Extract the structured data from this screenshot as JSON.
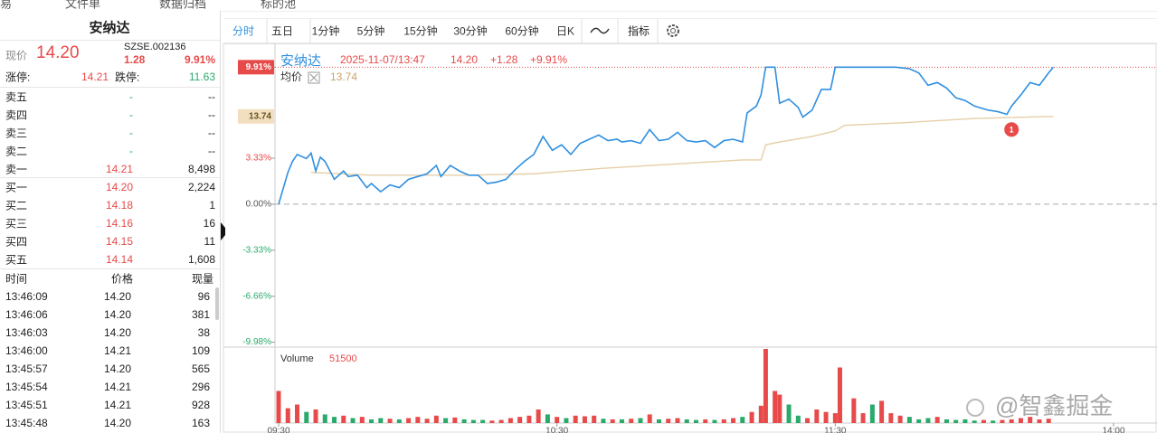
{
  "top_bar": {
    "items": [
      "易",
      "文件单",
      "数据归档",
      "标的池"
    ]
  },
  "quote": {
    "name": "安纳达",
    "price_label": "现价",
    "price": "14.20",
    "code": "SZSE.002136",
    "change": "1.28",
    "change_pct": "9.91%",
    "limit_up_label": "涨停:",
    "limit_up": "14.21",
    "limit_down_label": "跌停:",
    "limit_down": "11.63"
  },
  "order_book": {
    "rows": [
      [
        "卖五",
        "-",
        "--"
      ],
      [
        "卖四",
        "-",
        "--"
      ],
      [
        "卖三",
        "-",
        "--"
      ],
      [
        "卖二",
        "-",
        "--"
      ],
      [
        "卖一",
        "14.21",
        "8,498"
      ],
      [
        "买一",
        "14.20",
        "2,224"
      ],
      [
        "买二",
        "14.18",
        "1"
      ],
      [
        "买三",
        "14.16",
        "16"
      ],
      [
        "买四",
        "14.15",
        "11"
      ],
      [
        "买五",
        "14.14",
        "1,608"
      ]
    ]
  },
  "trades": {
    "header": [
      "时间",
      "价格",
      "现量"
    ],
    "rows": [
      [
        "13:46:09",
        "14.20",
        "96"
      ],
      [
        "13:46:06",
        "14.20",
        "381"
      ],
      [
        "13:46:03",
        "14.20",
        "38"
      ],
      [
        "13:46:00",
        "14.21",
        "109"
      ],
      [
        "13:45:57",
        "14.20",
        "565"
      ],
      [
        "13:45:54",
        "14.21",
        "296"
      ],
      [
        "13:45:51",
        "14.21",
        "928"
      ],
      [
        "13:45:48",
        "14.20",
        "163"
      ]
    ]
  },
  "toolbar": {
    "tabs": [
      "分时",
      "五日",
      "1分钟",
      "5分钟",
      "15分钟",
      "30分钟",
      "60分钟",
      "日K"
    ],
    "indicator": "指标"
  },
  "chart_data": {
    "type": "line",
    "legend": {
      "date": "2025-11-07/13:47",
      "change": "+1.28",
      "change_pct": "+9.91%"
    },
    "avg_price": "13.74",
    "x": [
      0,
      2,
      3,
      4,
      6,
      7,
      8,
      9,
      10,
      12,
      14,
      15,
      17,
      19,
      20,
      22,
      24,
      26,
      28,
      30,
      32,
      34,
      35,
      37,
      39,
      41,
      43,
      45,
      47,
      49,
      51,
      53,
      55,
      57,
      59,
      61,
      63,
      65,
      67,
      69,
      71,
      73,
      74,
      76,
      78,
      80,
      82,
      84,
      86,
      88,
      90,
      92,
      94,
      96,
      98,
      100,
      101,
      103,
      104,
      105,
      107,
      108,
      110,
      112,
      113,
      115,
      117,
      119,
      120,
      122,
      125,
      129,
      133,
      136,
      138,
      140,
      142,
      144,
      146,
      148,
      150,
      151,
      153,
      155,
      157,
      158,
      160,
      162,
      164,
      166,
      167
    ],
    "series": [
      {
        "name": "安纳达",
        "color": "#2f8fe0",
        "values": [
          0,
          2.3,
          3.1,
          3.6,
          3.3,
          3.7,
          2.4,
          3.4,
          3.1,
          1.8,
          2.4,
          2.0,
          2.1,
          1.2,
          1.5,
          0.9,
          1.4,
          1.2,
          1.8,
          2.0,
          2.2,
          2.8,
          2.0,
          2.8,
          2.4,
          2.1,
          2.1,
          1.5,
          1.6,
          1.8,
          2.5,
          3.1,
          3.6,
          4.9,
          3.9,
          4.3,
          3.6,
          4.4,
          4.7,
          5.0,
          4.6,
          4.7,
          4.5,
          4.6,
          4.4,
          5.4,
          4.6,
          4.7,
          5.2,
          4.6,
          4.5,
          4.6,
          4.1,
          4.6,
          4.7,
          4.5,
          6.6,
          7.1,
          7.9,
          9.91,
          9.91,
          7.3,
          7.6,
          7.0,
          6.3,
          6.8,
          8.3,
          8.3,
          9.91,
          9.91,
          9.91,
          9.91,
          9.91,
          9.8,
          9.5,
          8.6,
          8.8,
          8.4,
          7.7,
          7.5,
          7.1,
          7.0,
          6.8,
          6.7,
          6.5,
          7.1,
          7.9,
          8.8,
          8.6,
          9.5,
          9.91
        ]
      },
      {
        "name": "均价",
        "color": "#e6cfa6",
        "x": [
          7,
          20,
          40,
          55,
          70,
          85,
          100,
          104,
          105,
          108,
          115,
          120,
          122,
          135,
          150,
          167
        ],
        "values": [
          2.3,
          2.1,
          2.1,
          2.2,
          2.6,
          2.9,
          3.2,
          3.2,
          4.3,
          4.5,
          4.9,
          5.3,
          5.7,
          5.9,
          6.2,
          6.35
        ]
      }
    ],
    "xlim": [
      0,
      180
    ],
    "xticks": [
      {
        "value": 0,
        "label": "09:30"
      },
      {
        "value": 60,
        "label": "10:30"
      },
      {
        "value": 120,
        "label": "11:30"
      },
      {
        "value": 180,
        "label": "14:00"
      }
    ],
    "ylim": [
      -10.4,
      11.5
    ],
    "yticks": [
      {
        "value": 9.91,
        "label": "9.91%"
      },
      {
        "value": 3.33,
        "label": "3.33%"
      },
      {
        "value": 0,
        "label": "0.00%"
      },
      {
        "value": -3.33,
        "label": "-3.33%"
      },
      {
        "value": -6.66,
        "label": "-6.66%"
      },
      {
        "value": -9.98,
        "label": "-9.98%"
      }
    ],
    "annotations": [
      {
        "x": 158,
        "y": 5.4,
        "text": "1"
      }
    ],
    "volume": {
      "name": "Volume",
      "current": 51500,
      "ylim": [
        0,
        60000
      ],
      "up_color": "#e84a4a",
      "down_color": "#2aaa6a",
      "x": [
        0,
        2,
        4,
        6,
        8,
        10,
        12,
        14,
        16,
        18,
        20,
        22,
        24,
        26,
        28,
        30,
        32,
        34,
        36,
        38,
        40,
        42,
        44,
        46,
        48,
        50,
        52,
        54,
        56,
        58,
        60,
        62,
        64,
        66,
        68,
        70,
        72,
        74,
        76,
        78,
        80,
        82,
        84,
        86,
        88,
        90,
        92,
        94,
        96,
        98,
        100,
        102,
        104,
        105,
        107,
        108,
        110,
        112,
        114,
        116,
        118,
        120,
        121,
        124,
        126,
        128,
        130,
        132,
        134,
        136,
        138,
        140,
        142,
        144,
        146,
        148,
        150,
        152,
        154,
        156,
        158,
        160,
        162,
        164,
        166
      ],
      "values": [
        26000,
        12000,
        15000,
        9000,
        11000,
        7000,
        5000,
        6000,
        4000,
        5000,
        3000,
        4000,
        3500,
        3000,
        4000,
        5000,
        3500,
        6000,
        4000,
        4500,
        3000,
        2500,
        2500,
        2000,
        2500,
        4000,
        5000,
        6000,
        11000,
        7000,
        5000,
        4000,
        6000,
        5500,
        6000,
        3500,
        3000,
        3000,
        3500,
        4000,
        7000,
        3000,
        3500,
        4000,
        3000,
        2500,
        3000,
        2500,
        3000,
        4000,
        5000,
        9000,
        14000,
        60000,
        26000,
        23000,
        15000,
        6000,
        4000,
        11000,
        9000,
        8000,
        45000,
        20000,
        8000,
        15000,
        18000,
        8000,
        6000,
        5000,
        3000,
        4000,
        5000,
        3000,
        2500,
        3000,
        2000,
        2500,
        2000,
        2500,
        3000,
        4000,
        5000,
        3000,
        3500
      ],
      "up": [
        true,
        true,
        true,
        false,
        true,
        false,
        false,
        true,
        false,
        true,
        false,
        false,
        true,
        false,
        true,
        true,
        true,
        true,
        false,
        true,
        false,
        false,
        false,
        true,
        true,
        true,
        true,
        true,
        true,
        false,
        true,
        false,
        true,
        true,
        true,
        false,
        true,
        false,
        true,
        false,
        true,
        false,
        true,
        true,
        false,
        false,
        true,
        false,
        true,
        true,
        false,
        true,
        true,
        true,
        true,
        true,
        false,
        false,
        true,
        true,
        true,
        true,
        true,
        true,
        true,
        false,
        true,
        true,
        true,
        false,
        false,
        false,
        true,
        false,
        false,
        false,
        false,
        true,
        false,
        true,
        true,
        true,
        true,
        true,
        true
      ]
    }
  },
  "watermark": "@智鑫掘金"
}
